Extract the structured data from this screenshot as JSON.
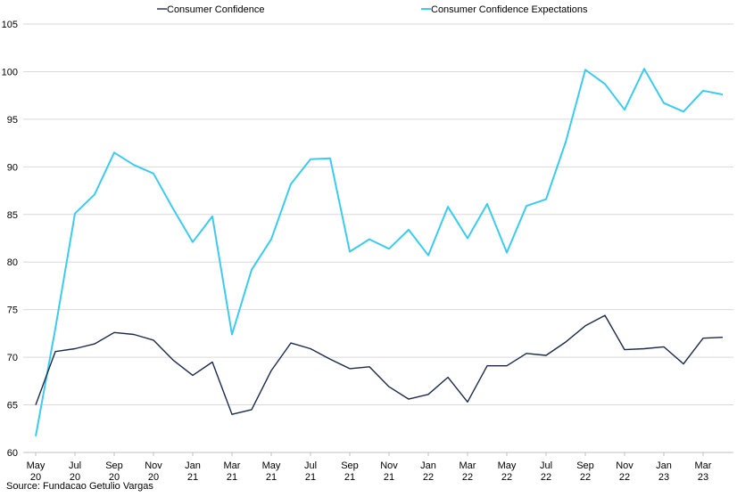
{
  "chart_data": {
    "type": "line",
    "title": "",
    "xlabel": "",
    "ylabel": "",
    "ylim": [
      60,
      105
    ],
    "yticks": [
      60,
      65,
      70,
      75,
      80,
      85,
      90,
      95,
      100,
      105
    ],
    "grid": "horizontal",
    "legend_position": "top",
    "x": [
      "May 20",
      "Jun 20",
      "Jul 20",
      "Aug 20",
      "Sep 20",
      "Oct 20",
      "Nov 20",
      "Dec 20",
      "Jan 21",
      "Feb 21",
      "Mar 21",
      "Apr 21",
      "May 21",
      "Jun 21",
      "Jul 21",
      "Aug 21",
      "Sep 21",
      "Oct 21",
      "Nov 21",
      "Dec 21",
      "Jan 22",
      "Feb 22",
      "Mar 22",
      "Apr 22",
      "May 22",
      "Jun 22",
      "Jul 22",
      "Aug 22",
      "Sep 22",
      "Oct 22",
      "Nov 22",
      "Dec 22",
      "Jan 23",
      "Feb 23",
      "Mar 23",
      "Apr 23"
    ],
    "xtick_labels": [
      [
        "May",
        "20"
      ],
      [
        "Jul",
        "20"
      ],
      [
        "Sep",
        "20"
      ],
      [
        "Nov",
        "20"
      ],
      [
        "Jan",
        "21"
      ],
      [
        "Mar",
        "21"
      ],
      [
        "May",
        "21"
      ],
      [
        "Jul",
        "21"
      ],
      [
        "Sep",
        "21"
      ],
      [
        "Nov",
        "21"
      ],
      [
        "Jan",
        "22"
      ],
      [
        "Mar",
        "22"
      ],
      [
        "May",
        "22"
      ],
      [
        "Jul",
        "22"
      ],
      [
        "Sep",
        "22"
      ],
      [
        "Nov",
        "22"
      ],
      [
        "Jan",
        "23"
      ],
      [
        "Mar",
        "23"
      ]
    ],
    "series": [
      {
        "name": "Consumer Confidence",
        "color": "#1b2a4a",
        "values": [
          65.0,
          70.6,
          70.9,
          71.4,
          72.6,
          72.4,
          71.8,
          69.7,
          68.1,
          69.5,
          64.0,
          64.5,
          68.6,
          71.5,
          70.9,
          69.8,
          68.8,
          69.0,
          66.9,
          65.6,
          66.1,
          67.9,
          65.3,
          69.1,
          69.1,
          70.4,
          70.2,
          71.6,
          73.3,
          74.4,
          70.8,
          70.9,
          71.1,
          69.3,
          72.0,
          72.1
        ]
      },
      {
        "name": "Consumer Confidence Expectations",
        "color": "#3ccbf0",
        "values": [
          61.7,
          73.0,
          85.1,
          87.1,
          91.5,
          90.2,
          89.3,
          85.6,
          82.1,
          84.8,
          72.4,
          79.2,
          82.4,
          88.2,
          90.8,
          90.9,
          81.1,
          82.4,
          81.4,
          83.4,
          80.7,
          85.8,
          82.5,
          86.1,
          81.0,
          85.9,
          86.6,
          92.6,
          100.2,
          98.7,
          96.0,
          100.3,
          96.7,
          95.8,
          98.0,
          97.6
        ]
      }
    ]
  },
  "source_note": "Source: Fundacao Getulio Vargas"
}
